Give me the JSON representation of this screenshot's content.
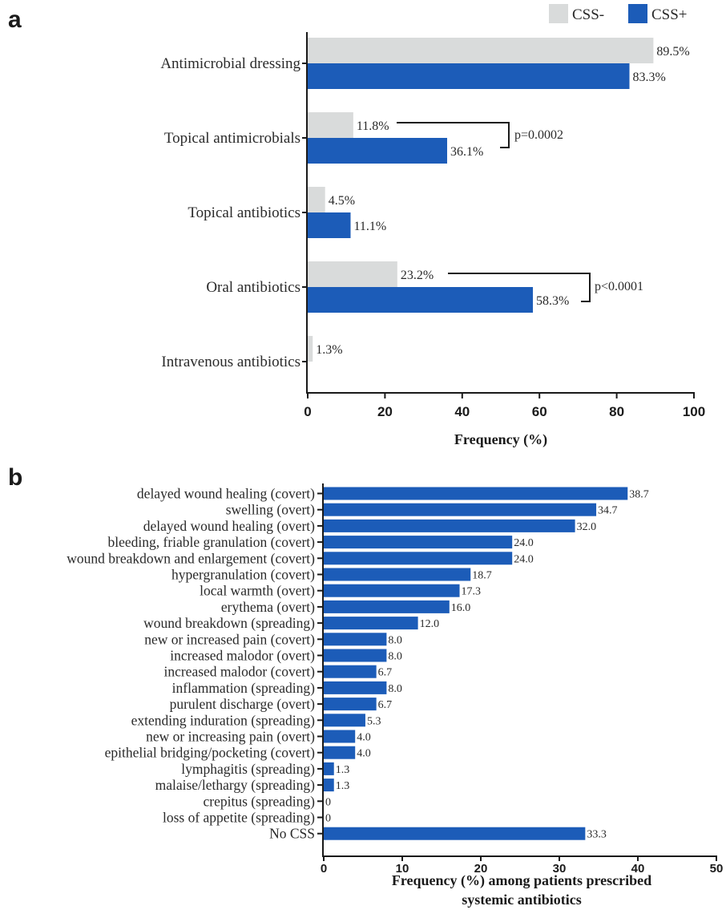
{
  "colors": {
    "css_minus": "#d9dbdb",
    "css_plus": "#1c5cb8"
  },
  "chart_data": [
    {
      "panel": "a",
      "type": "bar",
      "orientation": "horizontal",
      "categories": [
        "Antimicrobial dressing",
        "Topical antimicrobials",
        "Topical antibiotics",
        "Oral antibiotics",
        "Intravenous antibiotics"
      ],
      "series": [
        {
          "name": "CSS-",
          "values": [
            89.5,
            11.8,
            4.5,
            23.2,
            1.3
          ],
          "labels": [
            "89.5%",
            "11.8%",
            "4.5%",
            "23.2%",
            "1.3%"
          ]
        },
        {
          "name": "CSS+",
          "values": [
            83.3,
            36.1,
            11.1,
            58.3,
            null
          ],
          "labels": [
            "83.3%",
            "36.1%",
            "11.1%",
            "58.3%",
            ""
          ]
        }
      ],
      "annotations": [
        {
          "category": "Topical antimicrobials",
          "text": "p=0.0002"
        },
        {
          "category": "Oral antibiotics",
          "text": "p<0.0001"
        }
      ],
      "xlabel": "Frequency (%)",
      "xlim": [
        0,
        100
      ],
      "xticks": [
        "0",
        "20",
        "40",
        "60",
        "80",
        "100"
      ],
      "legend": "top-right"
    },
    {
      "panel": "b",
      "type": "bar",
      "orientation": "horizontal",
      "categories": [
        "delayed wound healing (covert)",
        "swelling (overt)",
        "delayed wound healing (overt)",
        "bleeding, friable granulation (covert)",
        "wound breakdown and enlargement (covert)",
        "hypergranulation (covert)",
        "local warmth (overt)",
        "erythema (overt)",
        "wound breakdown (spreading)",
        "new or increased pain (covert)",
        "increased malodor (overt)",
        "increased malodor (covert)",
        "inflammation (spreading)",
        "purulent discharge (overt)",
        "extending induration (spreading)",
        "new or increasing pain (overt)",
        "epithelial bridging/pocketing (covert)",
        "lymphagitis (spreading)",
        "malaise/lethargy (spreading)",
        "crepitus (spreading)",
        "loss of appetite (spreading)",
        "No CSS"
      ],
      "values": [
        38.7,
        34.7,
        32.0,
        24.0,
        24.0,
        18.7,
        17.3,
        16.0,
        12.0,
        8.0,
        8.0,
        6.7,
        8.0,
        6.7,
        5.3,
        4.0,
        4.0,
        1.3,
        1.3,
        0,
        0,
        33.3
      ],
      "labels": [
        "38.7",
        "34.7",
        "32.0",
        "24.0",
        "24.0",
        "18.7",
        "17.3",
        "16.0",
        "12.0",
        "8.0",
        "8.0",
        "6.7",
        "8.0",
        "6.7",
        "5.3",
        "4.0",
        "4.0",
        "1.3",
        "1.3",
        "0",
        "0",
        "33.3"
      ],
      "xlabel_lines": [
        "Frequency (%) among patients prescribed",
        "systemic antibiotics"
      ],
      "xlim": [
        0,
        50
      ],
      "xticks": [
        "0",
        "10",
        "20",
        "30",
        "40",
        "50"
      ]
    }
  ]
}
